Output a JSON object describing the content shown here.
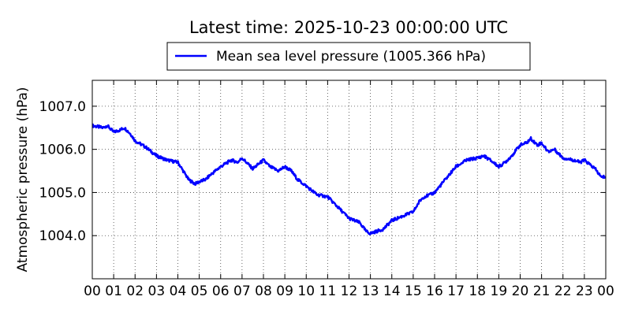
{
  "chart_data": {
    "type": "line",
    "title": "Latest time: 2025-10-23 00:00:00 UTC",
    "xlabel": "",
    "ylabel": "Atmospheric pressure (hPa)",
    "ylim": [
      1003.0,
      1007.6
    ],
    "xlim": [
      0,
      24
    ],
    "grid": true,
    "legend_position": "top-center",
    "series_color": "#0000ff",
    "x_tick_labels": [
      "00",
      "01",
      "02",
      "03",
      "04",
      "05",
      "06",
      "07",
      "08",
      "09",
      "10",
      "11",
      "12",
      "13",
      "14",
      "15",
      "16",
      "17",
      "18",
      "19",
      "20",
      "21",
      "22",
      "23",
      "00"
    ],
    "y_ticks": [
      1004.0,
      1005.0,
      1006.0,
      1007.0
    ],
    "y_tick_labels": [
      "1004.0",
      "1005.0",
      "1006.0",
      "1007.0"
    ],
    "series": [
      {
        "name": "Mean sea level pressure (1005.366 hPa)",
        "x": [
          0,
          0.5,
          0.7,
          1.0,
          1.3,
          1.5,
          1.8,
          2.0,
          2.5,
          3.0,
          3.5,
          4.0,
          4.5,
          4.8,
          5.0,
          5.3,
          5.5,
          6.0,
          6.5,
          6.8,
          7.0,
          7.3,
          7.5,
          8.0,
          8.3,
          8.7,
          9.0,
          9.3,
          9.6,
          10.0,
          10.5,
          11.0,
          11.5,
          12.0,
          12.5,
          12.8,
          13.0,
          13.3,
          13.6,
          13.8,
          14.0,
          14.5,
          15.0,
          15.3,
          15.5,
          15.8,
          16.0,
          16.5,
          17.0,
          17.5,
          18.0,
          18.3,
          18.6,
          19.0,
          19.3,
          19.6,
          20.0,
          20.3,
          20.5,
          20.8,
          21.0,
          21.3,
          21.6,
          22.0,
          22.5,
          22.8,
          23.0,
          23.5,
          23.8,
          24.0
        ],
        "y": [
          1006.55,
          1006.5,
          1006.55,
          1006.4,
          1006.45,
          1006.5,
          1006.35,
          1006.2,
          1006.05,
          1005.85,
          1005.75,
          1005.7,
          1005.3,
          1005.2,
          1005.25,
          1005.3,
          1005.4,
          1005.6,
          1005.75,
          1005.7,
          1005.8,
          1005.65,
          1005.55,
          1005.75,
          1005.6,
          1005.5,
          1005.6,
          1005.5,
          1005.3,
          1005.15,
          1004.95,
          1004.9,
          1004.65,
          1004.4,
          1004.3,
          1004.1,
          1004.05,
          1004.1,
          1004.15,
          1004.25,
          1004.35,
          1004.45,
          1004.55,
          1004.8,
          1004.9,
          1004.95,
          1005.0,
          1005.3,
          1005.6,
          1005.75,
          1005.8,
          1005.85,
          1005.75,
          1005.6,
          1005.7,
          1005.85,
          1006.1,
          1006.15,
          1006.25,
          1006.1,
          1006.15,
          1005.95,
          1006.0,
          1005.8,
          1005.75,
          1005.7,
          1005.75,
          1005.55,
          1005.35,
          1005.37
        ]
      }
    ]
  }
}
